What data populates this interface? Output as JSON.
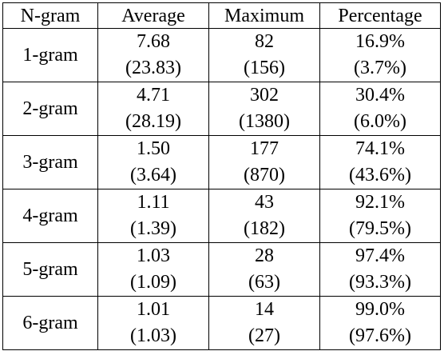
{
  "table": {
    "headers": [
      "N-gram",
      "Average",
      "Maximum",
      "Percentage"
    ],
    "rows": [
      {
        "ngram": "1-gram",
        "average": "7.68",
        "average_sub": "(23.83)",
        "maximum": "82",
        "maximum_sub": "(156)",
        "percentage": "16.9%",
        "percentage_sub": "(3.7%)"
      },
      {
        "ngram": "2-gram",
        "average": "4.71",
        "average_sub": "(28.19)",
        "maximum": "302",
        "maximum_sub": "(1380)",
        "percentage": "30.4%",
        "percentage_sub": "(6.0%)"
      },
      {
        "ngram": "3-gram",
        "average": "1.50",
        "average_sub": "(3.64)",
        "maximum": "177",
        "maximum_sub": "(870)",
        "percentage": "74.1%",
        "percentage_sub": "(43.6%)"
      },
      {
        "ngram": "4-gram",
        "average": "1.11",
        "average_sub": "(1.39)",
        "maximum": "43",
        "maximum_sub": "(182)",
        "percentage": "92.1%",
        "percentage_sub": "(79.5%)"
      },
      {
        "ngram": "5-gram",
        "average": "1.03",
        "average_sub": "(1.09)",
        "maximum": "28",
        "maximum_sub": "(63)",
        "percentage": "97.4%",
        "percentage_sub": "(93.3%)"
      },
      {
        "ngram": "6-gram",
        "average": "1.01",
        "average_sub": "(1.03)",
        "maximum": "14",
        "maximum_sub": "(27)",
        "percentage": "99.0%",
        "percentage_sub": "(97.6%)"
      }
    ]
  }
}
